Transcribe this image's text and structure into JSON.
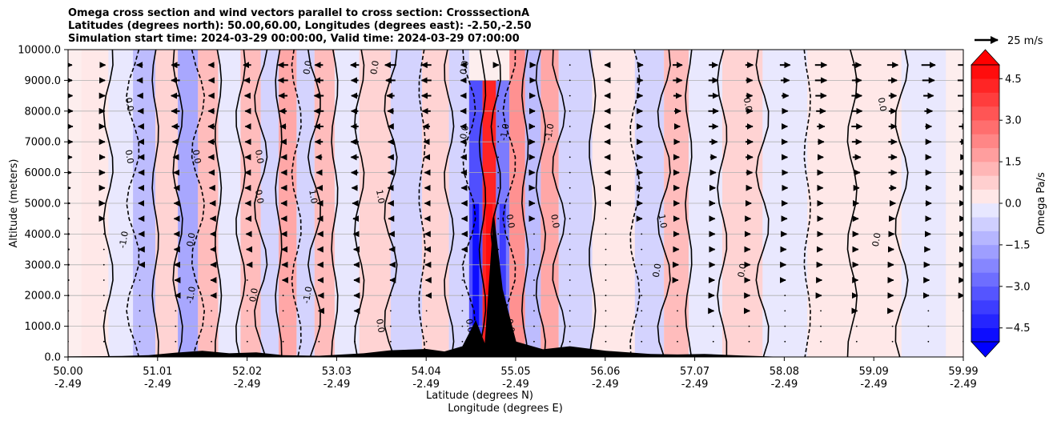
{
  "chart_data": {
    "type": "cross-section",
    "title_lines": [
      "Omega cross section and wind vectors parallel to cross section: CrosssectionA",
      "Latitudes (degrees north): 50.00,60.00, Longitudes (degrees east): -2.50,-2.50",
      "Simulation start time: 2024-03-29 00:00:00, Valid time: 2024-03-29 07:00:00"
    ],
    "ylabel": "Altitude (meters)",
    "xlabel_lat": "Latitude (degrees N)",
    "xlabel_lon": "Longitude (degrees E)",
    "ylim": [
      0,
      10000
    ],
    "yticks": [
      "0.0",
      "1000.0",
      "2000.0",
      "3000.0",
      "4000.0",
      "5000.0",
      "6000.0",
      "7000.0",
      "8000.0",
      "9000.0",
      "10000.0"
    ],
    "xlim_lat": [
      50.0,
      59.99
    ],
    "xticks": [
      {
        "lat": "50.00",
        "lon": "-2.49"
      },
      {
        "lat": "51.01",
        "lon": "-2.49"
      },
      {
        "lat": "52.02",
        "lon": "-2.49"
      },
      {
        "lat": "53.03",
        "lon": "-2.49"
      },
      {
        "lat": "54.04",
        "lon": "-2.49"
      },
      {
        "lat": "55.05",
        "lon": "-2.49"
      },
      {
        "lat": "56.06",
        "lon": "-2.49"
      },
      {
        "lat": "57.07",
        "lon": "-2.49"
      },
      {
        "lat": "58.08",
        "lon": "-2.49"
      },
      {
        "lat": "59.09",
        "lon": "-2.49"
      },
      {
        "lat": "59.99",
        "lon": "-2.49"
      }
    ],
    "colorbar": {
      "label": "Omega Pa/s",
      "range": [
        -5.0,
        5.0
      ],
      "levels": 20,
      "ticks": [
        "4.5",
        "3.0",
        "1.5",
        "0.0",
        "−1.5",
        "−3.0",
        "−4.5"
      ],
      "tick_values": [
        4.5,
        3.0,
        1.5,
        0.0,
        -1.5,
        -3.0,
        -4.5
      ],
      "low_color": "#0000ff",
      "mid_color": "#ffffff",
      "high_color": "#ff0000"
    },
    "vector_key": {
      "label": "25 m/s",
      "speed": 25
    },
    "omega_bands": [
      {
        "lat": 50.3,
        "omega": 0.3
      },
      {
        "lat": 50.6,
        "omega": -0.4
      },
      {
        "lat": 50.85,
        "omega": -1.0
      },
      {
        "lat": 51.1,
        "omega": 0.8
      },
      {
        "lat": 51.35,
        "omega": -1.5
      },
      {
        "lat": 51.55,
        "omega": 1.0
      },
      {
        "lat": 51.8,
        "omega": -0.4
      },
      {
        "lat": 52.05,
        "omega": 1.2
      },
      {
        "lat": 52.25,
        "omega": -0.8
      },
      {
        "lat": 52.45,
        "omega": 1.5
      },
      {
        "lat": 52.65,
        "omega": -0.6
      },
      {
        "lat": 52.85,
        "omega": 1.1
      },
      {
        "lat": 53.1,
        "omega": -0.3
      },
      {
        "lat": 53.4,
        "omega": 0.6
      },
      {
        "lat": 53.8,
        "omega": -0.7
      },
      {
        "lat": 54.1,
        "omega": 0.9
      },
      {
        "lat": 54.4,
        "omega": -0.9
      },
      {
        "lat": 54.55,
        "omega": -3.5
      },
      {
        "lat": 54.7,
        "omega": 4.8
      },
      {
        "lat": 54.85,
        "omega": -2.5
      },
      {
        "lat": 55.0,
        "omega": 2.0
      },
      {
        "lat": 55.2,
        "omega": -1.2
      },
      {
        "lat": 55.35,
        "omega": 1.8
      },
      {
        "lat": 55.6,
        "omega": -0.5
      },
      {
        "lat": 56.1,
        "omega": 0.4
      },
      {
        "lat": 56.55,
        "omega": -0.8
      },
      {
        "lat": 56.75,
        "omega": 1.2
      },
      {
        "lat": 57.1,
        "omega": -0.4
      },
      {
        "lat": 57.5,
        "omega": 0.6
      },
      {
        "lat": 58.0,
        "omega": -0.3
      },
      {
        "lat": 58.5,
        "omega": 0.4
      },
      {
        "lat": 59.0,
        "omega": 0.2
      },
      {
        "lat": 59.6,
        "omega": -0.3
      }
    ],
    "contour_labels": [
      "0.0",
      "0.0",
      "0.0",
      "-1.0",
      "1.0",
      "0.0",
      "0.0",
      "-1.0",
      "1.0",
      "0.0",
      "0.0",
      "-1.0",
      "0.0",
      "0.0",
      "1.0",
      "0.0",
      "0.0",
      "-1.0",
      "0.0",
      "0.0",
      "0.0",
      "0.0",
      "0.0",
      "-1.0",
      "0.0",
      "0.0",
      "0.0",
      "0.0",
      "0.0"
    ],
    "terrain": [
      {
        "lat": 50.0,
        "alt": 20
      },
      {
        "lat": 50.6,
        "alt": 30
      },
      {
        "lat": 50.9,
        "alt": 60
      },
      {
        "lat": 51.2,
        "alt": 140
      },
      {
        "lat": 51.5,
        "alt": 200
      },
      {
        "lat": 51.8,
        "alt": 120
      },
      {
        "lat": 52.1,
        "alt": 150
      },
      {
        "lat": 52.4,
        "alt": 60
      },
      {
        "lat": 52.8,
        "alt": 40
      },
      {
        "lat": 53.3,
        "alt": 120
      },
      {
        "lat": 53.6,
        "alt": 220
      },
      {
        "lat": 54.0,
        "alt": 260
      },
      {
        "lat": 54.2,
        "alt": 180
      },
      {
        "lat": 54.4,
        "alt": 350
      },
      {
        "lat": 54.55,
        "alt": 1200
      },
      {
        "lat": 54.65,
        "alt": 450
      },
      {
        "lat": 54.75,
        "alt": 4700
      },
      {
        "lat": 54.85,
        "alt": 2200
      },
      {
        "lat": 55.0,
        "alt": 500
      },
      {
        "lat": 55.3,
        "alt": 250
      },
      {
        "lat": 55.6,
        "alt": 350
      },
      {
        "lat": 56.0,
        "alt": 200
      },
      {
        "lat": 56.5,
        "alt": 100
      },
      {
        "lat": 56.8,
        "alt": 80
      },
      {
        "lat": 57.1,
        "alt": 100
      },
      {
        "lat": 57.5,
        "alt": 50
      },
      {
        "lat": 58.0,
        "alt": 0
      },
      {
        "lat": 59.99,
        "alt": 0
      }
    ],
    "wind_levels_m": [
      500,
      1000,
      1500,
      2000,
      2500,
      3000,
      3500,
      4000,
      4500,
      5000,
      5500,
      6000,
      6500,
      7000,
      7500,
      8000,
      8500,
      9000,
      9500
    ],
    "wind_columns_lat": [
      50.0,
      50.4,
      50.8,
      51.2,
      51.6,
      52.0,
      52.4,
      52.8,
      53.2,
      53.6,
      54.0,
      54.4,
      54.8,
      55.2,
      55.6,
      56.0,
      56.4,
      56.8,
      57.2,
      57.6,
      58.0,
      58.4,
      58.8,
      59.2,
      59.6,
      59.99
    ],
    "wind_upper_profile": [
      {
        "lat": 50.0,
        "u": 12
      },
      {
        "lat": 51.0,
        "u": -10
      },
      {
        "lat": 52.0,
        "u": -8
      },
      {
        "lat": 53.0,
        "u": -12
      },
      {
        "lat": 54.0,
        "u": -10
      },
      {
        "lat": 55.0,
        "u": 4
      },
      {
        "lat": 56.0,
        "u": -3
      },
      {
        "lat": 57.0,
        "u": 12
      },
      {
        "lat": 58.0,
        "u": 10
      },
      {
        "lat": 59.0,
        "u": 14
      },
      {
        "lat": 59.99,
        "u": 12
      }
    ]
  }
}
